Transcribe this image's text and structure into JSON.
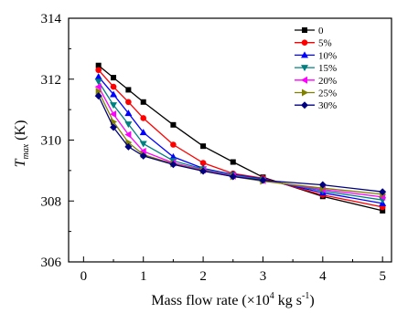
{
  "chart_data": {
    "type": "line",
    "xlabel_parts": {
      "prefix": "Mass flow rate (×10",
      "exp": "4",
      "mid": " kg s",
      "exp2": "-1",
      "suffix": ")"
    },
    "ylabel_parts": {
      "main": "T",
      "sub": "max",
      "unit": " (K)"
    },
    "xlim": [
      -0.25,
      5.15
    ],
    "ylim": [
      306,
      314
    ],
    "xticks": [
      0,
      1,
      2,
      3,
      4,
      5
    ],
    "yticks": [
      306,
      308,
      310,
      312,
      314
    ],
    "legend_position": "top-right",
    "x": [
      0.25,
      0.5,
      0.75,
      1.0,
      1.5,
      2.0,
      2.5,
      3.0,
      4.0,
      5.0
    ],
    "series": [
      {
        "name": "0",
        "color": "#000000",
        "marker": "square",
        "values": [
          312.45,
          312.05,
          311.65,
          311.25,
          310.5,
          309.8,
          309.28,
          308.78,
          308.15,
          307.68
        ]
      },
      {
        "name": "5%",
        "color": "#ff0000",
        "marker": "circle",
        "values": [
          312.3,
          311.75,
          311.25,
          310.72,
          309.85,
          309.25,
          308.9,
          308.75,
          308.2,
          307.8
        ]
      },
      {
        "name": "10%",
        "color": "#0000ff",
        "marker": "triangle-up",
        "values": [
          312.08,
          311.5,
          310.88,
          310.25,
          309.45,
          309.07,
          308.87,
          308.72,
          308.27,
          307.92
        ]
      },
      {
        "name": "15%",
        "color": "#008080",
        "marker": "triangle-down",
        "values": [
          311.92,
          311.15,
          310.52,
          309.88,
          309.32,
          309.05,
          308.85,
          308.7,
          308.33,
          308.03
        ]
      },
      {
        "name": "20%",
        "color": "#ff00ff",
        "marker": "triangle-left",
        "values": [
          311.75,
          310.85,
          310.18,
          309.63,
          309.25,
          309.02,
          308.82,
          308.67,
          308.38,
          308.13
        ]
      },
      {
        "name": "25%",
        "color": "#808000",
        "marker": "triangle-right",
        "values": [
          311.6,
          310.6,
          309.92,
          309.52,
          309.22,
          309.0,
          308.8,
          308.65,
          308.42,
          308.22
        ]
      },
      {
        "name": "30%",
        "color": "#000080",
        "marker": "diamond",
        "values": [
          311.45,
          310.42,
          309.78,
          309.48,
          309.2,
          308.98,
          308.8,
          308.68,
          308.53,
          308.3
        ]
      }
    ]
  }
}
